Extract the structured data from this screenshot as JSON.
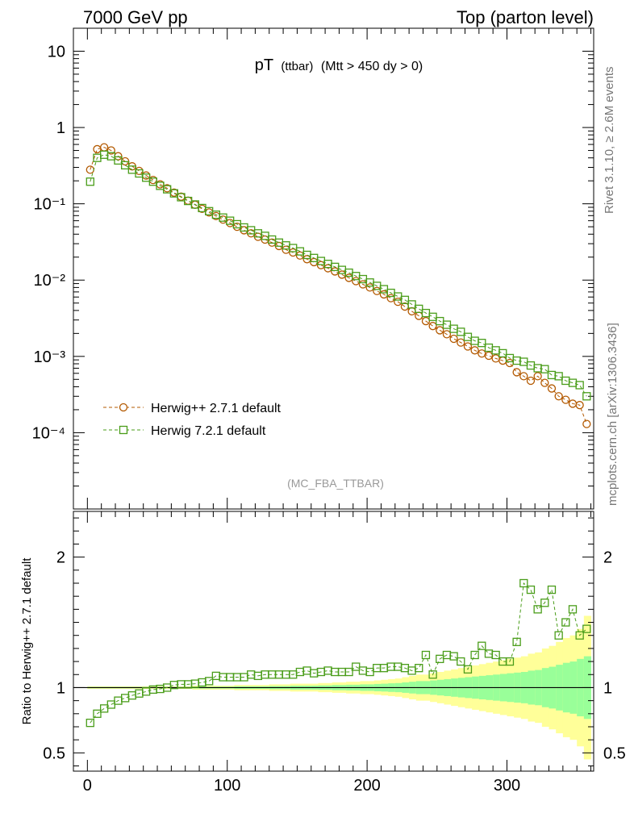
{
  "header": {
    "left": "7000 GeV pp",
    "right": "Top (parton level)"
  },
  "side_labels": {
    "rivet": "Rivet 3.1.10, ≥ 2.6M events",
    "mcplots": "mcplots.cern.ch [arXiv:1306.3436]"
  },
  "plot_title": {
    "main": "pT",
    "sub": "(ttbar)",
    "cut": "(Mtt > 450 dy > 0)"
  },
  "analysis_label": "(MC_FBA_TTBAR)",
  "ratio_ylabel": "Ratio to Herwig++ 2.7.1 default",
  "colors": {
    "herwigpp": "#b35900",
    "herwig7": "#4a9d1a",
    "band_yellow": "#ffff99",
    "band_green": "#99ff99"
  },
  "chart_data": [
    {
      "type": "scatter",
      "yscale": "log",
      "xlim": [
        -10,
        362
      ],
      "ylim": [
        1e-05,
        20
      ],
      "xlabel": "",
      "ylabel": "",
      "grid": false,
      "legend": "bottom-left",
      "yticks": [
        {
          "value": 10,
          "label": "10"
        },
        {
          "value": 1,
          "label": "1"
        },
        {
          "value": 0.1,
          "label": "10⁻¹"
        },
        {
          "value": 0.01,
          "label": "10⁻²"
        },
        {
          "value": 0.001,
          "label": "10⁻³"
        },
        {
          "value": 0.0001,
          "label": "10⁻⁴"
        }
      ],
      "series": [
        {
          "name": "Herwig++ 2.7.1 default",
          "marker": "circle",
          "x": [
            2,
            7,
            12,
            17,
            22,
            27,
            32,
            37,
            42,
            47,
            52,
            57,
            62,
            67,
            72,
            77,
            82,
            87,
            92,
            97,
            102,
            107,
            112,
            117,
            122,
            127,
            132,
            137,
            142,
            147,
            152,
            157,
            162,
            167,
            172,
            177,
            182,
            187,
            192,
            197,
            202,
            207,
            212,
            217,
            222,
            227,
            232,
            237,
            242,
            247,
            252,
            257,
            262,
            267,
            272,
            277,
            282,
            287,
            292,
            297,
            302,
            307,
            312,
            317,
            322,
            327,
            332,
            337,
            342,
            347,
            352,
            357
          ],
          "y": [
            0.28,
            0.52,
            0.55,
            0.5,
            0.42,
            0.36,
            0.31,
            0.27,
            0.235,
            0.205,
            0.18,
            0.16,
            0.14,
            0.124,
            0.11,
            0.097,
            0.086,
            0.077,
            0.069,
            0.062,
            0.056,
            0.05,
            0.045,
            0.041,
            0.037,
            0.034,
            0.031,
            0.028,
            0.025,
            0.023,
            0.021,
            0.0188,
            0.0172,
            0.0157,
            0.0143,
            0.013,
            0.0118,
            0.0107,
            0.0097,
            0.0088,
            0.008,
            0.0072,
            0.0065,
            0.0058,
            0.0052,
            0.0045,
            0.0039,
            0.0034,
            0.0029,
            0.0025,
            0.0022,
            0.00195,
            0.0017,
            0.00152,
            0.00135,
            0.0012,
            0.00109,
            0.00102,
            0.00094,
            0.00088,
            0.00082,
            0.00062,
            0.00055,
            0.00048,
            0.00055,
            0.00045,
            0.00038,
            0.0003,
            0.00027,
            0.00024,
            0.00023,
            0.00013
          ]
        },
        {
          "name": "Herwig 7.2.1 default",
          "marker": "square",
          "x": [
            2,
            7,
            12,
            17,
            22,
            27,
            32,
            37,
            42,
            47,
            52,
            57,
            62,
            67,
            72,
            77,
            82,
            87,
            92,
            97,
            102,
            107,
            112,
            117,
            122,
            127,
            132,
            137,
            142,
            147,
            152,
            157,
            162,
            167,
            172,
            177,
            182,
            187,
            192,
            197,
            202,
            207,
            212,
            217,
            222,
            227,
            232,
            237,
            242,
            247,
            252,
            257,
            262,
            267,
            272,
            277,
            282,
            287,
            292,
            297,
            302,
            307,
            312,
            317,
            322,
            327,
            332,
            337,
            342,
            347,
            352,
            357
          ],
          "y": [
            0.195,
            0.4,
            0.44,
            0.42,
            0.37,
            0.32,
            0.28,
            0.25,
            0.22,
            0.195,
            0.172,
            0.155,
            0.137,
            0.122,
            0.109,
            0.098,
            0.088,
            0.08,
            0.072,
            0.066,
            0.06,
            0.054,
            0.049,
            0.045,
            0.041,
            0.038,
            0.034,
            0.031,
            0.0285,
            0.0263,
            0.0238,
            0.0214,
            0.0195,
            0.0178,
            0.0163,
            0.0149,
            0.0136,
            0.0125,
            0.0113,
            0.0103,
            0.0093,
            0.0084,
            0.0076,
            0.0068,
            0.0061,
            0.0055,
            0.0048,
            0.0042,
            0.0037,
            0.0033,
            0.0029,
            0.0026,
            0.0023,
            0.0021,
            0.0018,
            0.0016,
            0.0015,
            0.0013,
            0.0012,
            0.0011,
            0.00095,
            0.00088,
            0.00085,
            0.00076,
            0.0007,
            0.00068,
            0.00057,
            0.00055,
            0.00048,
            0.00045,
            0.00042,
            0.0003
          ]
        }
      ]
    },
    {
      "type": "scatter",
      "xlim": [
        -10,
        362
      ],
      "ylim": [
        0.36,
        2.35
      ],
      "ylabel": "Ratio to Herwig++ 2.7.1 default",
      "xlabel": "",
      "grid": false,
      "reference_line": 1,
      "xticks": [
        0,
        100,
        200,
        300
      ],
      "yticks": [
        0.5,
        1,
        2
      ],
      "band": {
        "x": [
          0,
          5,
          10,
          15,
          20,
          25,
          30,
          35,
          40,
          45,
          50,
          55,
          60,
          65,
          70,
          75,
          80,
          85,
          90,
          95,
          100,
          105,
          110,
          115,
          120,
          125,
          130,
          135,
          140,
          145,
          150,
          155,
          160,
          165,
          170,
          175,
          180,
          185,
          190,
          195,
          200,
          205,
          210,
          215,
          220,
          225,
          230,
          235,
          240,
          245,
          250,
          255,
          260,
          265,
          270,
          275,
          280,
          285,
          290,
          295,
          300,
          305,
          310,
          315,
          320,
          325,
          330,
          335,
          340,
          345,
          350,
          355,
          360
        ],
        "yellow_low": [
          0.99,
          0.99,
          0.99,
          0.99,
          0.99,
          0.99,
          0.99,
          0.99,
          0.99,
          0.99,
          0.99,
          0.99,
          0.99,
          0.99,
          0.99,
          0.985,
          0.985,
          0.985,
          0.985,
          0.985,
          0.985,
          0.98,
          0.98,
          0.98,
          0.98,
          0.98,
          0.975,
          0.975,
          0.975,
          0.97,
          0.97,
          0.97,
          0.97,
          0.965,
          0.965,
          0.96,
          0.96,
          0.955,
          0.955,
          0.95,
          0.95,
          0.945,
          0.94,
          0.935,
          0.93,
          0.92,
          0.91,
          0.9,
          0.9,
          0.89,
          0.88,
          0.87,
          0.86,
          0.85,
          0.84,
          0.83,
          0.82,
          0.81,
          0.8,
          0.79,
          0.78,
          0.77,
          0.76,
          0.74,
          0.73,
          0.7,
          0.68,
          0.65,
          0.62,
          0.6,
          0.55,
          0.45,
          0.45
        ],
        "yellow_high": [
          1.01,
          1.01,
          1.01,
          1.01,
          1.01,
          1.01,
          1.01,
          1.01,
          1.01,
          1.01,
          1.01,
          1.01,
          1.01,
          1.01,
          1.01,
          1.015,
          1.015,
          1.015,
          1.015,
          1.015,
          1.015,
          1.02,
          1.02,
          1.02,
          1.02,
          1.02,
          1.025,
          1.025,
          1.025,
          1.03,
          1.03,
          1.03,
          1.03,
          1.035,
          1.035,
          1.04,
          1.04,
          1.045,
          1.045,
          1.05,
          1.05,
          1.055,
          1.06,
          1.065,
          1.07,
          1.08,
          1.09,
          1.1,
          1.1,
          1.11,
          1.12,
          1.13,
          1.14,
          1.15,
          1.16,
          1.17,
          1.18,
          1.19,
          1.2,
          1.21,
          1.22,
          1.23,
          1.24,
          1.26,
          1.27,
          1.3,
          1.32,
          1.35,
          1.38,
          1.4,
          1.45,
          1.55,
          1.55
        ],
        "green_low": [
          0.995,
          0.995,
          0.995,
          0.995,
          0.995,
          0.995,
          0.995,
          0.995,
          0.995,
          0.995,
          0.995,
          0.995,
          0.995,
          0.995,
          0.995,
          0.993,
          0.993,
          0.993,
          0.993,
          0.993,
          0.993,
          0.99,
          0.99,
          0.99,
          0.99,
          0.99,
          0.988,
          0.988,
          0.988,
          0.985,
          0.985,
          0.985,
          0.985,
          0.983,
          0.983,
          0.98,
          0.98,
          0.978,
          0.978,
          0.975,
          0.975,
          0.972,
          0.97,
          0.967,
          0.965,
          0.96,
          0.955,
          0.95,
          0.95,
          0.945,
          0.94,
          0.935,
          0.93,
          0.925,
          0.92,
          0.915,
          0.91,
          0.905,
          0.9,
          0.895,
          0.89,
          0.885,
          0.88,
          0.87,
          0.865,
          0.85,
          0.84,
          0.825,
          0.81,
          0.8,
          0.78,
          0.76,
          0.76
        ],
        "green_high": [
          1.005,
          1.005,
          1.005,
          1.005,
          1.005,
          1.005,
          1.005,
          1.005,
          1.005,
          1.005,
          1.005,
          1.005,
          1.005,
          1.005,
          1.005,
          1.007,
          1.007,
          1.007,
          1.007,
          1.007,
          1.007,
          1.01,
          1.01,
          1.01,
          1.01,
          1.01,
          1.012,
          1.012,
          1.012,
          1.015,
          1.015,
          1.015,
          1.015,
          1.017,
          1.017,
          1.02,
          1.02,
          1.022,
          1.022,
          1.025,
          1.025,
          1.028,
          1.03,
          1.033,
          1.035,
          1.04,
          1.045,
          1.05,
          1.05,
          1.055,
          1.06,
          1.065,
          1.07,
          1.075,
          1.08,
          1.085,
          1.09,
          1.095,
          1.1,
          1.105,
          1.11,
          1.115,
          1.12,
          1.13,
          1.135,
          1.15,
          1.16,
          1.175,
          1.19,
          1.2,
          1.22,
          1.24,
          1.24
        ]
      },
      "series": [
        {
          "name": "Herwig 7.2.1 default",
          "marker": "square",
          "x": [
            2,
            7,
            12,
            17,
            22,
            27,
            32,
            37,
            42,
            47,
            52,
            57,
            62,
            67,
            72,
            77,
            82,
            87,
            92,
            97,
            102,
            107,
            112,
            117,
            122,
            127,
            132,
            137,
            142,
            147,
            152,
            157,
            162,
            167,
            172,
            177,
            182,
            187,
            192,
            197,
            202,
            207,
            212,
            217,
            222,
            227,
            232,
            237,
            242,
            247,
            252,
            257,
            262,
            267,
            272,
            277,
            282,
            287,
            292,
            297,
            302,
            307,
            312,
            317,
            322,
            327,
            332,
            337,
            342,
            347,
            352,
            357
          ],
          "y": [
            0.73,
            0.8,
            0.84,
            0.87,
            0.9,
            0.92,
            0.94,
            0.955,
            0.97,
            0.985,
            0.99,
            1.0,
            1.02,
            1.025,
            1.025,
            1.03,
            1.04,
            1.05,
            1.09,
            1.08,
            1.08,
            1.08,
            1.08,
            1.1,
            1.09,
            1.1,
            1.1,
            1.1,
            1.1,
            1.1,
            1.12,
            1.13,
            1.11,
            1.12,
            1.13,
            1.12,
            1.12,
            1.12,
            1.16,
            1.13,
            1.12,
            1.15,
            1.15,
            1.16,
            1.16,
            1.15,
            1.13,
            1.15,
            1.25,
            1.1,
            1.22,
            1.25,
            1.24,
            1.2,
            1.14,
            1.25,
            1.32,
            1.26,
            1.25,
            1.2,
            1.2,
            1.35,
            1.8,
            1.75,
            1.6,
            1.65,
            1.75,
            1.4,
            1.5,
            1.6,
            1.4,
            1.45
          ]
        }
      ]
    }
  ]
}
